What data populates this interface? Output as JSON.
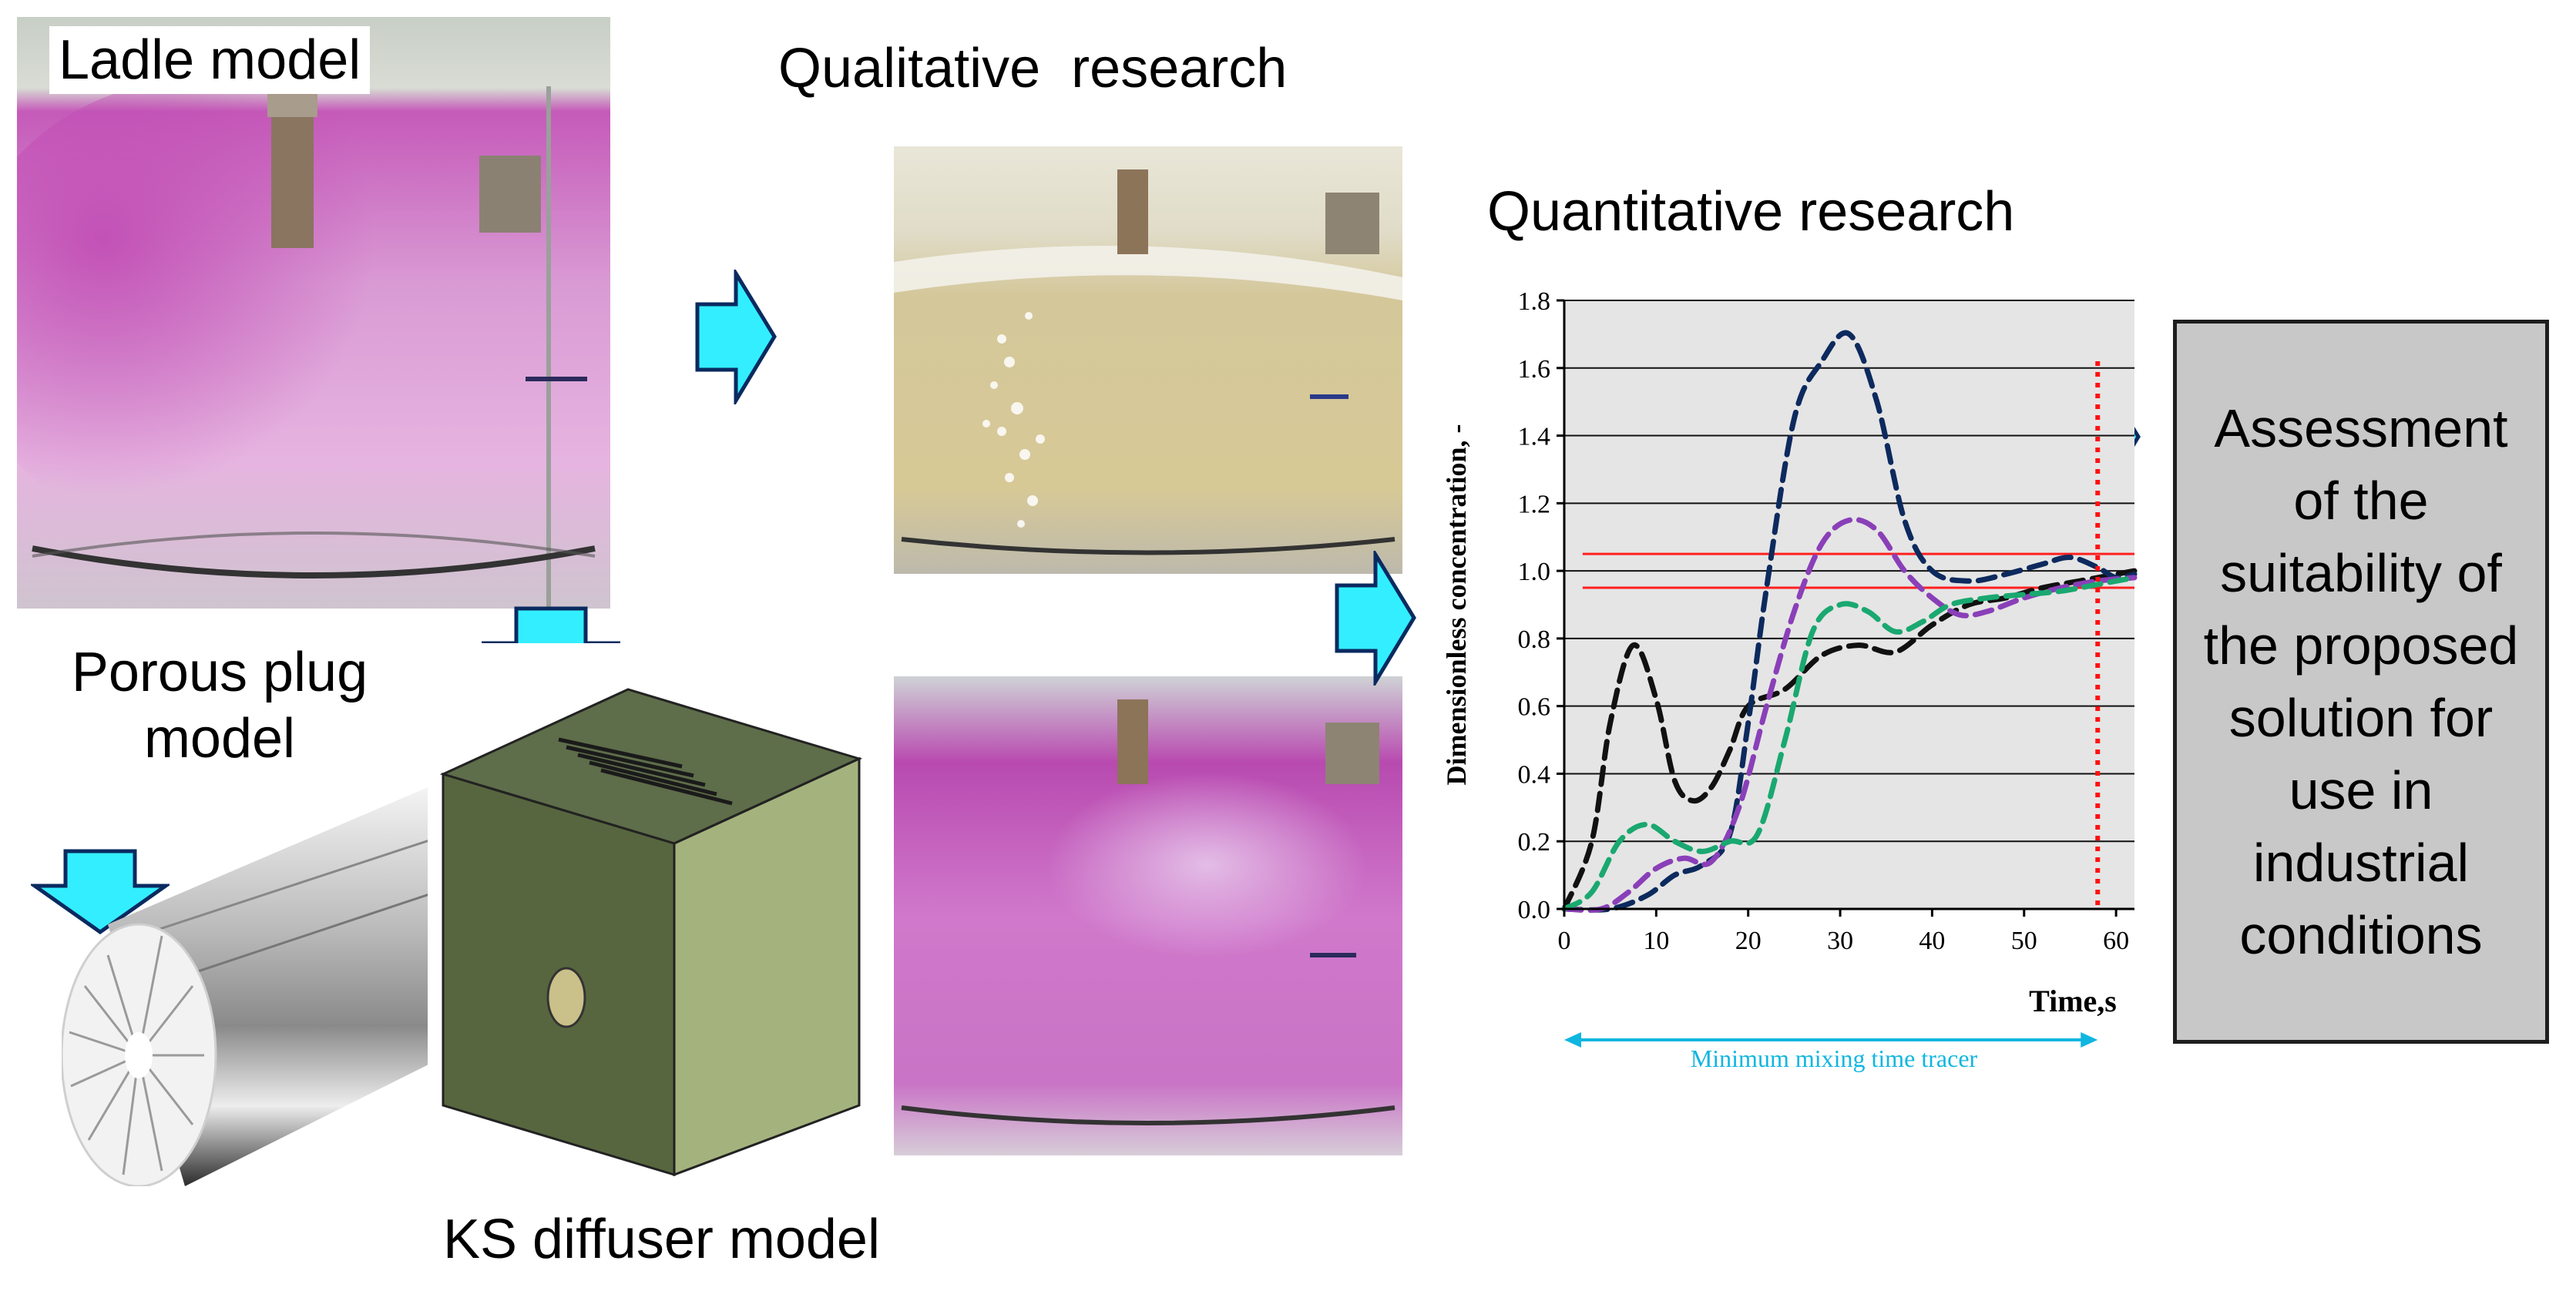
{
  "labels": {
    "ladle_model": "Ladle model",
    "qualitative": "Qualitative  research",
    "quantitative": "Quantitative research",
    "porous_plug_line1": "Porous plug",
    "porous_plug_line2": "model",
    "ks_diffuser": "KS diffuser model",
    "assessment": "Assessment of the suitability of the proposed solution for use in industrial conditions"
  },
  "colors": {
    "arrow_fill": "#33eeff",
    "arrow_stroke": "#0a2a60",
    "water_pink": "#d24fc4",
    "diffuser_green": "#5b6b47",
    "red_lines": "#ff2020"
  },
  "chart_data": {
    "type": "line",
    "title": "",
    "xlabel": "Time,s",
    "ylabel": "Dimensionless concentration, -",
    "xlim": [
      0,
      62
    ],
    "ylim": [
      0,
      1.8
    ],
    "x_ticks": [
      "0",
      "10",
      "20",
      "30",
      "40",
      "50",
      "60"
    ],
    "y_ticks": [
      "0.0",
      "0.2",
      "0.4",
      "0.6",
      "0.8",
      "1.0",
      "1.2",
      "1.4",
      "1.6",
      "1.8"
    ],
    "reference_lines": [
      0.95,
      1.05
    ],
    "mixing_time_marker_x": 58,
    "annotation": "Minimum mixing time tracer",
    "series": [
      {
        "name": "black",
        "color": "#111111",
        "x": [
          0,
          3,
          5,
          7.5,
          10,
          12,
          14,
          16,
          18,
          20,
          24,
          28,
          32,
          36,
          40,
          44,
          48,
          52,
          56,
          60,
          62
        ],
        "y": [
          0.0,
          0.2,
          0.55,
          0.78,
          0.62,
          0.38,
          0.32,
          0.36,
          0.47,
          0.6,
          0.65,
          0.75,
          0.78,
          0.76,
          0.84,
          0.9,
          0.92,
          0.95,
          0.97,
          0.99,
          1.0
        ]
      },
      {
        "name": "navy",
        "color": "#0d2a5e",
        "x": [
          0,
          5,
          9,
          12,
          15,
          18,
          20,
          22,
          25,
          28,
          31,
          34,
          37,
          40,
          44,
          48,
          52,
          55,
          58,
          60,
          62
        ],
        "y": [
          0.0,
          0.0,
          0.04,
          0.1,
          0.13,
          0.22,
          0.55,
          0.95,
          1.45,
          1.62,
          1.7,
          1.5,
          1.15,
          1.0,
          0.97,
          0.99,
          1.02,
          1.04,
          1.01,
          0.98,
          0.99
        ]
      },
      {
        "name": "purple",
        "color": "#8a3fb8",
        "x": [
          0,
          4,
          7,
          10,
          13,
          16,
          19,
          22,
          25,
          28,
          31,
          34,
          37,
          40,
          43,
          46,
          50,
          54,
          58,
          62
        ],
        "y": [
          0.0,
          0.0,
          0.05,
          0.12,
          0.15,
          0.14,
          0.3,
          0.6,
          0.88,
          1.08,
          1.15,
          1.12,
          1.0,
          0.92,
          0.87,
          0.88,
          0.92,
          0.95,
          0.97,
          0.98
        ]
      },
      {
        "name": "green",
        "color": "#1aa870",
        "x": [
          0,
          3,
          6,
          9,
          12,
          15,
          18,
          21,
          24,
          27,
          30,
          33,
          36,
          39,
          42,
          46,
          50,
          54,
          58,
          62
        ],
        "y": [
          0.0,
          0.05,
          0.2,
          0.25,
          0.2,
          0.17,
          0.2,
          0.22,
          0.5,
          0.82,
          0.9,
          0.88,
          0.82,
          0.85,
          0.9,
          0.92,
          0.93,
          0.94,
          0.96,
          0.98
        ]
      }
    ]
  }
}
